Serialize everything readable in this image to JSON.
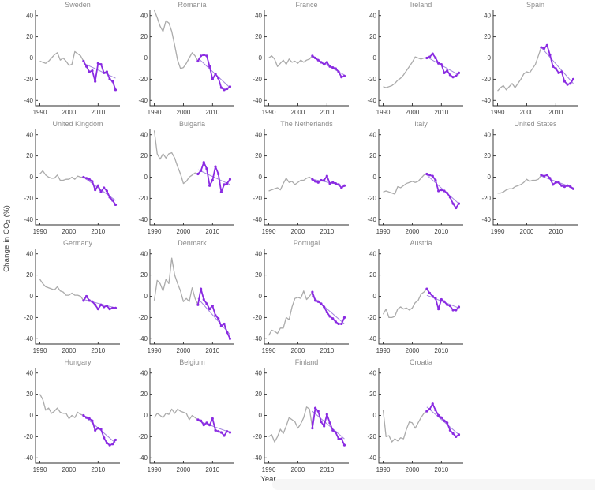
{
  "figure": {
    "ylabel_pre": "Change in CO",
    "ylabel_sub": "2",
    "ylabel_post": " (%)",
    "xlabel": "Year"
  },
  "chart_data": {
    "type": "line",
    "description": "Small multiples: percent change in CO2 emissions by country, gray series 1990-2005, purple highlighted series 2005-2016 with markers and a thin straight purple trend line over the highlighted span.",
    "x_years_start": 1990,
    "x_years_end": 2016,
    "highlight_start_year": 2005,
    "xticks": [
      1990,
      2000,
      2010
    ],
    "yticks": [
      40,
      20,
      0,
      -20,
      -40
    ],
    "ylim": [
      -45,
      45
    ],
    "xlim": [
      1988.5,
      2017.5
    ],
    "xlabel": "Year",
    "ylabel": "Change in CO2 (%)",
    "legend": "none",
    "grid": "off",
    "colors": {
      "gray_line": "#ababab",
      "highlight_line": "#8a2be2",
      "trend_line": "#a285dd",
      "axis": "#2b2b2b",
      "tick_label": "#3d3d3d",
      "title": "#8c8c8c"
    },
    "layout": {
      "columns": 5,
      "rows": 4
    },
    "panels": [
      {
        "name": "Sweden",
        "row": 1,
        "col": 1,
        "trend": [
          -5,
          -19
        ],
        "values": [
          -3,
          -4,
          -5,
          -3,
          0,
          3,
          5,
          -2,
          0,
          -3,
          -7,
          -6,
          6,
          4,
          2,
          -3,
          -8,
          -13,
          -12,
          -22,
          -5,
          -6,
          -14,
          -13,
          -20,
          -22,
          -30
        ]
      },
      {
        "name": "Romania",
        "row": 1,
        "col": 2,
        "trend": [
          0,
          -28
        ],
        "values": [
          45,
          38,
          30,
          25,
          35,
          33,
          25,
          12,
          -2,
          -10,
          -9,
          -5,
          0,
          5,
          2,
          -3,
          2,
          3,
          2,
          -8,
          -20,
          -15,
          -19,
          -28,
          -30,
          -29,
          -27
        ]
      },
      {
        "name": "France",
        "row": 1,
        "col": 3,
        "trend": [
          1,
          -16
        ],
        "values": [
          0,
          2,
          -1,
          -8,
          -5,
          -2,
          -6,
          -1,
          -4,
          -3,
          -5,
          -2,
          -4,
          -2,
          -1,
          2,
          0,
          -2,
          -4,
          -6,
          -4,
          -8,
          -9,
          -10,
          -13,
          -18,
          -17
        ]
      },
      {
        "name": "Ireland",
        "row": 1,
        "col": 4,
        "trend": [
          1,
          -16
        ],
        "values": [
          -27,
          -28,
          -27,
          -26,
          -24,
          -21,
          -19,
          -16,
          -12,
          -8,
          -4,
          1,
          0,
          -1,
          0,
          0,
          1,
          4,
          0,
          -5,
          -6,
          -14,
          -12,
          -16,
          -18,
          -17,
          -14
        ]
      },
      {
        "name": "Spain",
        "row": 1,
        "col": 5,
        "trend": [
          10,
          -24
        ],
        "values": [
          -31,
          -28,
          -26,
          -30,
          -27,
          -24,
          -28,
          -24,
          -20,
          -15,
          -13,
          -14,
          -10,
          -6,
          2,
          10,
          9,
          12,
          3,
          -8,
          -10,
          -14,
          -13,
          -22,
          -25,
          -24,
          -20
        ]
      },
      {
        "name": "United Kingdom",
        "row": 2,
        "col": 1,
        "trend": [
          0,
          -22
        ],
        "values": [
          3,
          6,
          2,
          0,
          -1,
          -1,
          2,
          -3,
          -3,
          -2,
          -2,
          0,
          -2,
          1,
          0,
          0,
          -1,
          -2,
          -4,
          -12,
          -8,
          -14,
          -10,
          -13,
          -19,
          -22,
          -26
        ]
      },
      {
        "name": "Bulgaria",
        "row": 2,
        "col": 2,
        "trend": [
          7,
          -7
        ],
        "values": [
          44,
          22,
          17,
          22,
          18,
          22,
          23,
          18,
          10,
          3,
          -6,
          -4,
          0,
          2,
          4,
          3,
          6,
          14,
          8,
          -8,
          -3,
          10,
          3,
          -14,
          -7,
          -6,
          -2
        ]
      },
      {
        "name": "The Netherlands",
        "row": 2,
        "col": 3,
        "trend": [
          -2,
          -8
        ],
        "values": [
          -13,
          -12,
          -11,
          -10,
          -12,
          -6,
          -1,
          -5,
          -4,
          -7,
          -5,
          -3,
          -3,
          -1,
          0,
          -2,
          -4,
          -5,
          -3,
          -3,
          1,
          -6,
          -5,
          -6,
          -7,
          -10,
          -8
        ]
      },
      {
        "name": "Italy",
        "row": 2,
        "col": 4,
        "trend": [
          2,
          -25
        ],
        "values": [
          -14,
          -13,
          -14,
          -15,
          -16,
          -9,
          -10,
          -8,
          -6,
          -5,
          -4,
          -5,
          -4,
          -1,
          2,
          3,
          2,
          1,
          -3,
          -13,
          -12,
          -13,
          -15,
          -19,
          -25,
          -29,
          -25
        ]
      },
      {
        "name": "United States",
        "row": 2,
        "col": 5,
        "trend": [
          1,
          -10
        ],
        "values": [
          -15,
          -15,
          -14,
          -12,
          -11,
          -11,
          -9,
          -8,
          -7,
          -5,
          -2,
          -4,
          -3,
          -3,
          -2,
          2,
          1,
          2,
          -1,
          -7,
          -5,
          -5,
          -8,
          -9,
          -8,
          -9,
          -11
        ]
      },
      {
        "name": "Germany",
        "row": 3,
        "col": 1,
        "trend": [
          -3,
          -11
        ],
        "values": [
          16,
          12,
          9,
          8,
          7,
          6,
          9,
          5,
          4,
          1,
          1,
          3,
          1,
          1,
          0,
          -4,
          0,
          -4,
          -5,
          -8,
          -12,
          -8,
          -10,
          -9,
          -12,
          -11,
          -11
        ]
      },
      {
        "name": "Denmark",
        "row": 3,
        "col": 2,
        "trend": [
          -2,
          -36
        ],
        "values": [
          -4,
          15,
          12,
          5,
          16,
          12,
          36,
          20,
          12,
          5,
          -5,
          -2,
          -5,
          8,
          -2,
          -8,
          7,
          -3,
          -7,
          -12,
          -9,
          -18,
          -21,
          -28,
          -26,
          -34,
          -40
        ]
      },
      {
        "name": "Portugal",
        "row": 3,
        "col": 3,
        "trend": [
          0,
          -26
        ],
        "values": [
          -37,
          -32,
          -33,
          -35,
          -30,
          -30,
          -20,
          -22,
          -10,
          -2,
          -1,
          -2,
          5,
          -3,
          0,
          4,
          -4,
          -5,
          -7,
          -10,
          -15,
          -19,
          -21,
          -24,
          -26,
          -26,
          -20
        ]
      },
      {
        "name": "Austria",
        "row": 3,
        "col": 4,
        "trend": [
          1,
          -11
        ],
        "values": [
          -17,
          -12,
          -20,
          -20,
          -19,
          -12,
          -10,
          -12,
          -11,
          -13,
          -11,
          -6,
          -4,
          2,
          4,
          7,
          3,
          0,
          -2,
          -12,
          -3,
          -5,
          -8,
          -9,
          -13,
          -13,
          -10
        ]
      },
      {
        "name": "Hungary",
        "row": 4,
        "col": 1,
        "trend": [
          0,
          -26
        ],
        "values": [
          20,
          15,
          5,
          7,
          2,
          4,
          7,
          3,
          2,
          2,
          -3,
          0,
          -2,
          3,
          1,
          0,
          -2,
          -3,
          -5,
          -14,
          -12,
          -13,
          -21,
          -26,
          -28,
          -27,
          -23
        ]
      },
      {
        "name": "Belgium",
        "row": 4,
        "col": 2,
        "trend": [
          -5,
          -16
        ],
        "values": [
          -2,
          2,
          0,
          -2,
          2,
          1,
          6,
          2,
          6,
          4,
          3,
          2,
          -4,
          0,
          -2,
          -4,
          -5,
          -9,
          -7,
          -9,
          -3,
          -14,
          -15,
          -16,
          -19,
          -15,
          -16
        ]
      },
      {
        "name": "Finland",
        "row": 4,
        "col": 3,
        "trend": [
          4,
          -22
        ],
        "values": [
          -20,
          -18,
          -25,
          -20,
          -13,
          -17,
          -10,
          -2,
          -4,
          -6,
          -12,
          -8,
          -2,
          8,
          6,
          -12,
          7,
          4,
          -6,
          -10,
          1,
          -7,
          -14,
          -16,
          -22,
          -22,
          -28
        ]
      },
      {
        "name": "Croatia",
        "row": 4,
        "col": 4,
        "trend": [
          8,
          -18
        ],
        "values": [
          5,
          -20,
          -19,
          -25,
          -22,
          -24,
          -21,
          -22,
          -13,
          -6,
          -7,
          -12,
          -7,
          -2,
          2,
          4,
          6,
          11,
          5,
          0,
          -2,
          -5,
          -7,
          -14,
          -17,
          -20,
          -18
        ]
      }
    ]
  }
}
